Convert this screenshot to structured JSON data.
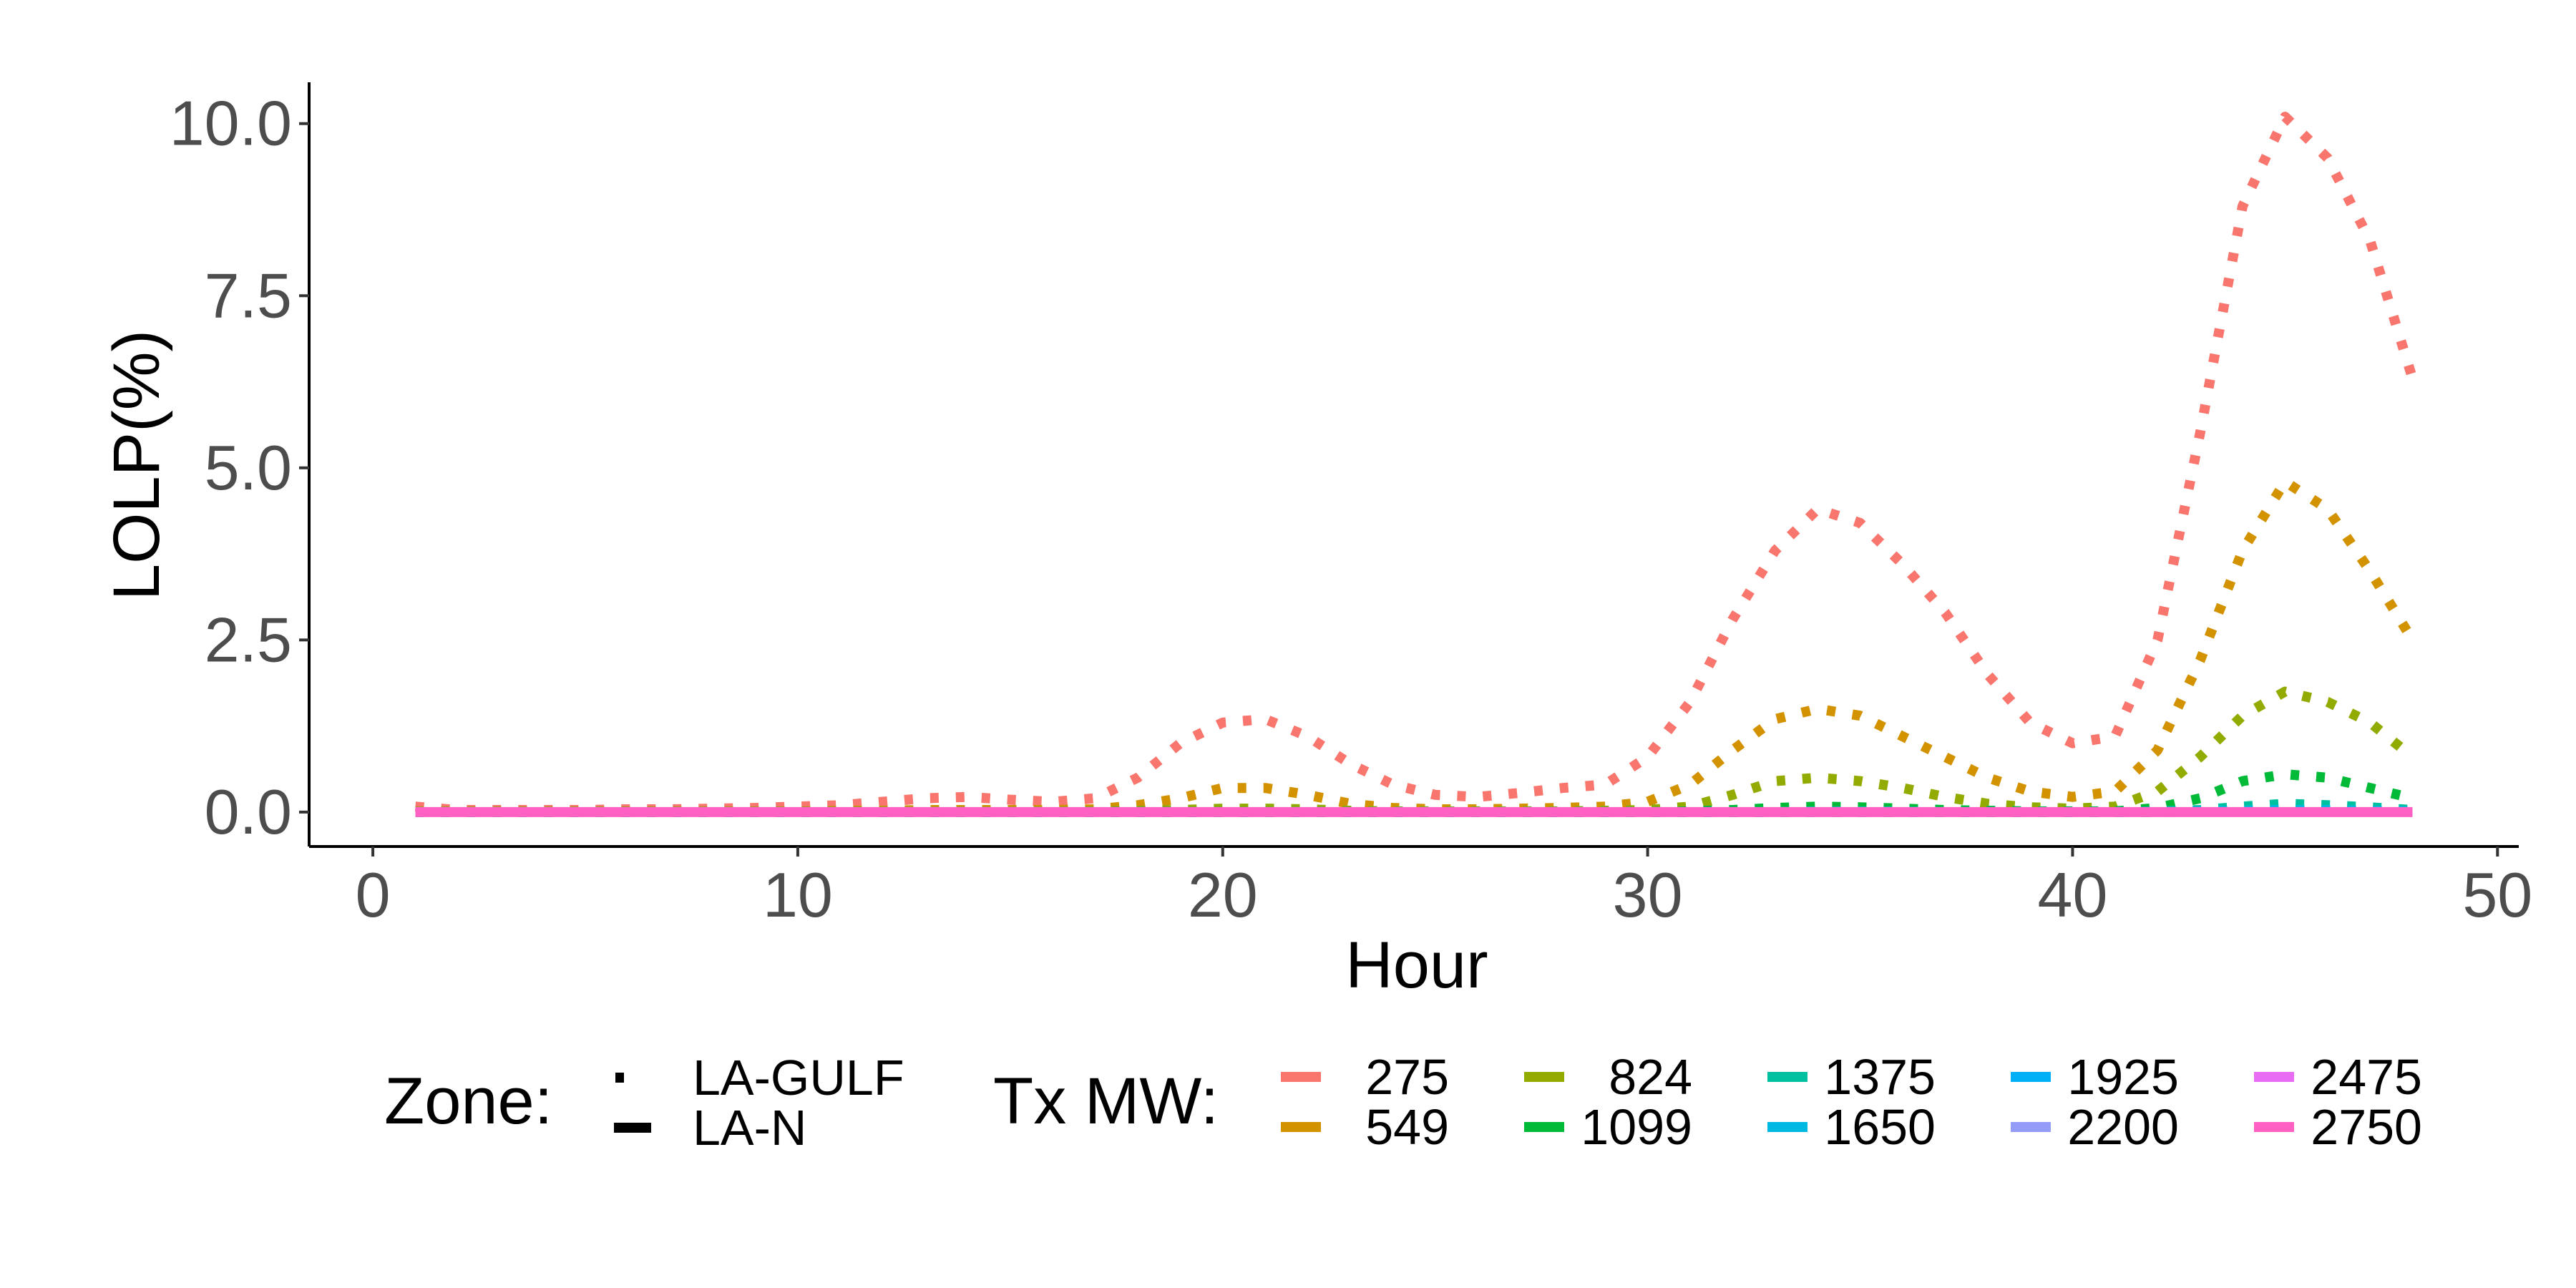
{
  "chart_data": {
    "type": "line",
    "xlabel": "Hour",
    "ylabel": "LOLP(%)",
    "xlim": [
      -1.5,
      50.5
    ],
    "ylim": [
      -0.5,
      10.6
    ],
    "x_ticks": [
      0,
      10,
      20,
      30,
      40,
      50
    ],
    "x_tick_labels": [
      "0",
      "10",
      "20",
      "30",
      "40",
      "50"
    ],
    "y_ticks": [
      0,
      2.5,
      5,
      7.5,
      10
    ],
    "y_tick_labels": [
      "0.0",
      "2.5",
      "5.0",
      "7.5",
      "10.0"
    ],
    "grid": false,
    "legend_position": "bottom",
    "legend": {
      "zone": {
        "title": "Zone:",
        "items": [
          {
            "label": "LA-GULF",
            "linetype": "dotted"
          },
          {
            "label": "LA-N",
            "linetype": "solid"
          }
        ]
      },
      "tx": {
        "title": "Tx MW:",
        "items": [
          {
            "label": "275",
            "color": "#F8766D"
          },
          {
            "label": "549",
            "color": "#D39200"
          },
          {
            "label": "824",
            "color": "#93AA00"
          },
          {
            "label": "1099",
            "color": "#00BA38"
          },
          {
            "label": "1375",
            "color": "#00C19F"
          },
          {
            "label": "1650",
            "color": "#00B9E3"
          },
          {
            "label": "1925",
            "color": "#00B0F6"
          },
          {
            "label": "2200",
            "color": "#959CF7"
          },
          {
            "label": "2475",
            "color": "#E76BF3"
          },
          {
            "label": "2750",
            "color": "#FF61C3"
          }
        ]
      }
    },
    "x": [
      1,
      2,
      3,
      4,
      5,
      6,
      7,
      8,
      9,
      10,
      11,
      12,
      13,
      14,
      15,
      16,
      17,
      18,
      19,
      20,
      21,
      22,
      23,
      24,
      25,
      26,
      27,
      28,
      29,
      30,
      31,
      32,
      33,
      34,
      35,
      36,
      37,
      38,
      39,
      40,
      41,
      42,
      43,
      44,
      45,
      46,
      47,
      48
    ],
    "series": [
      {
        "zone": "LA-GULF",
        "tx": "275",
        "color": "#F8766D",
        "values": [
          0.08,
          0.03,
          0.03,
          0.03,
          0.03,
          0.04,
          0.04,
          0.05,
          0.06,
          0.08,
          0.1,
          0.15,
          0.2,
          0.22,
          0.18,
          0.15,
          0.2,
          0.5,
          1.0,
          1.3,
          1.35,
          1.1,
          0.7,
          0.4,
          0.25,
          0.22,
          0.28,
          0.35,
          0.4,
          0.8,
          1.6,
          2.8,
          3.8,
          4.4,
          4.2,
          3.6,
          2.9,
          2.0,
          1.3,
          1.0,
          1.1,
          2.5,
          5.5,
          8.8,
          10.1,
          9.5,
          8.3,
          6.3
        ]
      },
      {
        "zone": "LA-GULF",
        "tx": "549",
        "color": "#D39200",
        "values": [
          0.01,
          0.01,
          0.01,
          0.01,
          0.01,
          0.01,
          0.01,
          0.01,
          0.01,
          0.01,
          0.02,
          0.02,
          0.03,
          0.03,
          0.03,
          0.03,
          0.04,
          0.1,
          0.2,
          0.35,
          0.35,
          0.25,
          0.12,
          0.06,
          0.04,
          0.04,
          0.05,
          0.06,
          0.08,
          0.15,
          0.4,
          0.9,
          1.35,
          1.5,
          1.4,
          1.1,
          0.8,
          0.5,
          0.3,
          0.22,
          0.3,
          0.9,
          2.2,
          3.8,
          4.8,
          4.4,
          3.5,
          2.5
        ]
      },
      {
        "zone": "LA-GULF",
        "tx": "824",
        "color": "#93AA00",
        "values": [
          0,
          0,
          0,
          0,
          0,
          0,
          0,
          0,
          0,
          0,
          0,
          0,
          0,
          0,
          0,
          0,
          0.01,
          0.02,
          0.03,
          0.05,
          0.05,
          0.04,
          0.02,
          0.01,
          0.01,
          0.01,
          0.01,
          0.01,
          0.02,
          0.03,
          0.08,
          0.25,
          0.45,
          0.5,
          0.45,
          0.35,
          0.22,
          0.12,
          0.07,
          0.05,
          0.08,
          0.3,
          0.8,
          1.4,
          1.75,
          1.6,
          1.3,
          0.8
        ]
      },
      {
        "zone": "LA-GULF",
        "tx": "1099",
        "color": "#00BA38",
        "values": [
          0,
          0,
          0,
          0,
          0,
          0,
          0,
          0,
          0,
          0,
          0,
          0,
          0,
          0,
          0,
          0,
          0,
          0,
          0,
          0,
          0,
          0,
          0,
          0,
          0,
          0,
          0,
          0,
          0,
          0,
          0.01,
          0.03,
          0.06,
          0.08,
          0.07,
          0.05,
          0.03,
          0.02,
          0.01,
          0.01,
          0.01,
          0.06,
          0.2,
          0.45,
          0.55,
          0.5,
          0.35,
          0.2
        ]
      },
      {
        "zone": "LA-GULF",
        "tx": "1375",
        "color": "#00C19F",
        "values": [
          0,
          0,
          0,
          0,
          0,
          0,
          0,
          0,
          0,
          0,
          0,
          0,
          0,
          0,
          0,
          0,
          0,
          0,
          0,
          0,
          0,
          0,
          0,
          0,
          0,
          0,
          0,
          0,
          0,
          0,
          0,
          0,
          0,
          0.01,
          0.01,
          0.01,
          0,
          0,
          0,
          0,
          0,
          0.01,
          0.03,
          0.08,
          0.12,
          0.1,
          0.07,
          0.03
        ]
      },
      {
        "zone": "LA-GULF",
        "tx": "1650",
        "color": "#00B9E3",
        "values": [
          0,
          0,
          0,
          0,
          0,
          0,
          0,
          0,
          0,
          0,
          0,
          0,
          0,
          0,
          0,
          0,
          0,
          0,
          0,
          0,
          0,
          0,
          0,
          0,
          0,
          0,
          0,
          0,
          0,
          0,
          0,
          0,
          0,
          0,
          0,
          0,
          0,
          0,
          0,
          0,
          0,
          0,
          0.01,
          0.02,
          0.03,
          0.03,
          0.02,
          0.01
        ]
      },
      {
        "zone": "LA-N",
        "tx": "2750",
        "color": "#FF61C3",
        "values": [
          0,
          0,
          0,
          0,
          0,
          0,
          0,
          0,
          0,
          0,
          0,
          0,
          0,
          0,
          0,
          0,
          0,
          0,
          0,
          0,
          0,
          0,
          0,
          0,
          0,
          0,
          0,
          0,
          0,
          0,
          0,
          0,
          0,
          0,
          0,
          0,
          0,
          0,
          0,
          0,
          0,
          0,
          0,
          0,
          0,
          0,
          0,
          0
        ]
      }
    ]
  }
}
